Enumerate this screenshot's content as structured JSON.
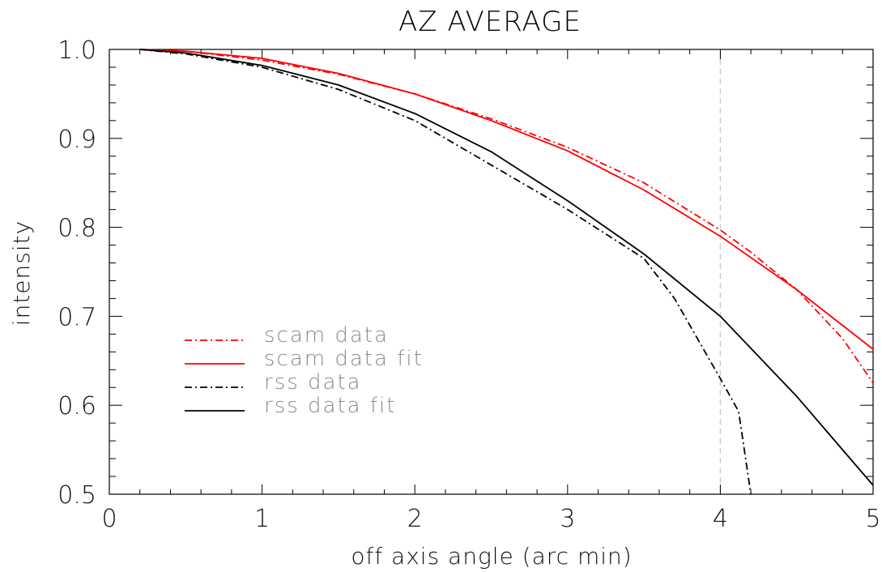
{
  "chart_data": {
    "type": "line",
    "title": "AZ AVERAGE",
    "xlabel": "off axis angle (arc min)",
    "ylabel": "intensity",
    "xlim": [
      0,
      5
    ],
    "ylim": [
      0.5,
      1.0
    ],
    "x_ticks": [
      "0",
      "1",
      "2",
      "3",
      "4",
      "5"
    ],
    "y_ticks": [
      "0.5",
      "0.6",
      "0.7",
      "0.8",
      "0.9",
      "1.0"
    ],
    "reference_line": {
      "x": 4.0,
      "style": "dashed",
      "color": "#cccccc"
    },
    "legend_position": "lower-left",
    "series": [
      {
        "name": "scam data",
        "color": "#ff0000",
        "style": "dashdot",
        "x": [
          0.2,
          0.5,
          1.0,
          1.5,
          2.0,
          2.5,
          3.0,
          3.5,
          4.0,
          4.2,
          4.5,
          4.8,
          5.0
        ],
        "y": [
          1.0,
          0.998,
          0.988,
          0.972,
          0.95,
          0.922,
          0.89,
          0.85,
          0.797,
          0.772,
          0.73,
          0.675,
          0.625
        ]
      },
      {
        "name": "scam data fit",
        "color": "#ff0000",
        "style": "solid",
        "x": [
          0.2,
          0.5,
          1.0,
          1.5,
          2.0,
          2.5,
          3.0,
          3.5,
          4.0,
          4.5,
          5.0
        ],
        "y": [
          1.0,
          0.998,
          0.99,
          0.973,
          0.95,
          0.92,
          0.886,
          0.842,
          0.79,
          0.73,
          0.663
        ]
      },
      {
        "name": "rss data",
        "color": "#000000",
        "style": "dashdot",
        "x": [
          0.2,
          0.5,
          1.0,
          1.5,
          2.0,
          2.5,
          3.0,
          3.5,
          3.7,
          4.0,
          4.12,
          4.2
        ],
        "y": [
          1.0,
          0.995,
          0.98,
          0.955,
          0.92,
          0.87,
          0.82,
          0.765,
          0.72,
          0.63,
          0.593,
          0.5
        ]
      },
      {
        "name": "rss data fit",
        "color": "#000000",
        "style": "solid",
        "x": [
          0.2,
          0.5,
          1.0,
          1.5,
          2.0,
          2.5,
          3.0,
          3.5,
          4.0,
          4.5,
          5.0
        ],
        "y": [
          1.0,
          0.996,
          0.982,
          0.96,
          0.928,
          0.885,
          0.83,
          0.77,
          0.7,
          0.61,
          0.51
        ]
      }
    ]
  }
}
